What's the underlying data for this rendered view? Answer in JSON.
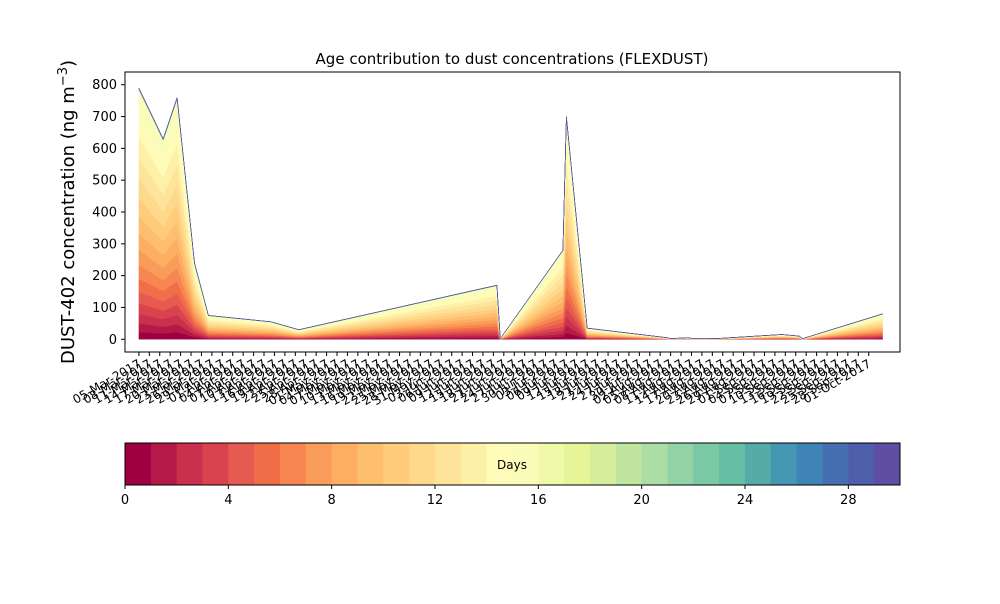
{
  "chart_data": {
    "type": "area",
    "title": "Age contribution to dust concentrations (FLEXDUST)",
    "ylabel_main": "DUST-402 concentration (ng m",
    "ylabel_sup": "−3",
    "ylabel_close": ")",
    "xlabel": "",
    "ylim": [
      -40,
      840
    ],
    "yticks": [
      0,
      100,
      200,
      300,
      400,
      500,
      600,
      700,
      800
    ],
    "x_dates": [
      "2017-03-05",
      "2017-03-12",
      "2017-03-16",
      "2017-03-21",
      "2017-03-25",
      "2017-04-12",
      "2017-04-20",
      "2017-06-16",
      "2017-06-17",
      "2017-07-05",
      "2017-07-06",
      "2017-07-12",
      "2017-08-04",
      "2017-08-05",
      "2017-08-10",
      "2017-08-11",
      "2017-08-16",
      "2017-08-18",
      "2017-09-06",
      "2017-09-11",
      "2017-09-12",
      "2017-10-05"
    ],
    "xlim": [
      "2017-03-01",
      "2017-10-10"
    ],
    "xtick_labels": [
      "05-Mar-2017",
      "08-Mar-2017",
      "11-Mar-2017",
      "14-Mar-2017",
      "17-Mar-2017",
      "20-Mar-2017",
      "23-Mar-2017",
      "26-Mar-2017",
      "29-Mar-2017",
      "01-Apr-2017",
      "04-Apr-2017",
      "07-Apr-2017",
      "10-Apr-2017",
      "13-Apr-2017",
      "16-Apr-2017",
      "19-Apr-2017",
      "22-Apr-2017",
      "25-Apr-2017",
      "28-Apr-2017",
      "01-May-2017",
      "04-May-2017",
      "07-May-2017",
      "10-May-2017",
      "13-May-2017",
      "16-May-2017",
      "19-May-2017",
      "22-May-2017",
      "25-May-2017",
      "28-May-2017",
      "31-May-2017",
      "03-Jun-2017",
      "06-Jun-2017",
      "09-Jun-2017",
      "12-Jun-2017",
      "15-Jun-2017",
      "18-Jun-2017",
      "21-Jun-2017",
      "24-Jun-2017",
      "27-Jun-2017",
      "30-Jun-2017",
      "03-Jul-2017",
      "06-Jul-2017",
      "09-Jul-2017",
      "12-Jul-2017",
      "15-Jul-2017",
      "18-Jul-2017",
      "21-Jul-2017",
      "24-Jul-2017",
      "27-Jul-2017",
      "30-Jul-2017",
      "02-Aug-2017",
      "05-Aug-2017",
      "08-Aug-2017",
      "11-Aug-2017",
      "14-Aug-2017",
      "17-Aug-2017",
      "20-Aug-2017",
      "23-Aug-2017",
      "26-Aug-2017",
      "29-Aug-2017",
      "01-Sep-2017",
      "04-Sep-2017",
      "07-Sep-2017",
      "10-Sep-2017",
      "13-Sep-2017",
      "16-Sep-2017",
      "19-Sep-2017",
      "22-Sep-2017",
      "25-Sep-2017",
      "28-Sep-2017",
      "01-Oct-2017"
    ],
    "series_totals": [
      790,
      630,
      760,
      240,
      75,
      55,
      30,
      170,
      2,
      280,
      700,
      35,
      5,
      2,
      5,
      3,
      3,
      2,
      15,
      10,
      2,
      80
    ],
    "age_bands": 30,
    "palette": [
      "#9e0142",
      "#b41a47",
      "#c9304b",
      "#d8434e",
      "#e65a4f",
      "#f06e48",
      "#f78650",
      "#fa9c59",
      "#fdae61",
      "#fdbf6f",
      "#fecc7b",
      "#fed98b",
      "#fee49a",
      "#fff0a8",
      "#fffbb8",
      "#fafdb9",
      "#f0f9a8",
      "#e6f598",
      "#d5ee9b",
      "#c0e5a0",
      "#abdda4",
      "#93d2a4",
      "#7bc8a4",
      "#66bfa4",
      "#56aba9",
      "#4596b0",
      "#3f84b7",
      "#4470b1",
      "#4f5eab",
      "#5e4fa2"
    ],
    "colorbar": {
      "label": "Days",
      "min": 0,
      "max": 30,
      "ticks": [
        0,
        4,
        8,
        12,
        16,
        20,
        24,
        28
      ]
    }
  }
}
